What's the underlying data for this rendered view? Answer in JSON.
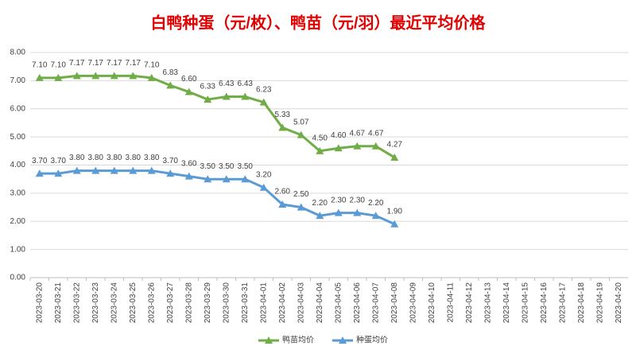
{
  "chart_data": {
    "type": "line",
    "title": "白鸭种蛋（元/枚）、鸭苗（元/羽）最近平均价格",
    "categories": [
      "2023-03-20",
      "2023-03-21",
      "2023-03-22",
      "2023-03-23",
      "2023-03-24",
      "2023-03-25",
      "2023-03-26",
      "2023-03-27",
      "2023-03-28",
      "2023-03-29",
      "2023-03-30",
      "2023-03-31",
      "2023-04-01",
      "2023-04-02",
      "2023-04-03",
      "2023-04-04",
      "2023-04-05",
      "2023-04-06",
      "2023-04-07",
      "2023-04-08",
      "2023-04-09",
      "2023-04-10",
      "2023-04-11",
      "2023-04-12",
      "2023-04-13",
      "2023-04-14",
      "2023-04-15",
      "2023-04-16",
      "2023-04-17",
      "2023-04-18",
      "2023-04-19",
      "2023-04-20"
    ],
    "series": [
      {
        "name": "鸭苗均价",
        "color": "#70ad47",
        "values": [
          7.1,
          7.1,
          7.17,
          7.17,
          7.17,
          7.17,
          7.1,
          6.83,
          6.6,
          6.33,
          6.43,
          6.43,
          6.23,
          5.33,
          5.07,
          4.5,
          4.6,
          4.67,
          4.67,
          4.27,
          null,
          null,
          null,
          null,
          null,
          null,
          null,
          null,
          null,
          null,
          null,
          null
        ],
        "value_labels": [
          "7.10",
          "7.10",
          "7.17",
          "7.17",
          "7.17",
          "7.17",
          "7.10",
          "6.83",
          "6.60",
          "6.33",
          "6.43",
          "6.43",
          "6.23",
          "5.33",
          "5.07",
          "4.50",
          "4.60",
          "4.67",
          "4.67",
          "4.27",
          null,
          null,
          null,
          null,
          null,
          null,
          null,
          null,
          null,
          null,
          null,
          null
        ]
      },
      {
        "name": "种蛋均价",
        "color": "#5b9bd5",
        "values": [
          3.7,
          3.7,
          3.8,
          3.8,
          3.8,
          3.8,
          3.8,
          3.7,
          3.6,
          3.5,
          3.5,
          3.5,
          3.2,
          2.6,
          2.5,
          2.2,
          2.3,
          2.3,
          2.2,
          1.9,
          null,
          null,
          null,
          null,
          null,
          null,
          null,
          null,
          null,
          null,
          null,
          null
        ],
        "value_labels": [
          "3.70",
          "3.70",
          "3.80",
          "3.80",
          "3.80",
          "3.80",
          "3.80",
          "3.70",
          "3.60",
          "3.50",
          "3.50",
          "3.50",
          "3.20",
          "2.60",
          "2.50",
          "2.20",
          "2.30",
          "2.30",
          "2.20",
          "1.90",
          null,
          null,
          null,
          null,
          null,
          null,
          null,
          null,
          null,
          null,
          null,
          null
        ]
      }
    ],
    "ylim": [
      0,
      8
    ],
    "yticks": [
      {
        "value": 0,
        "label": "0.00"
      },
      {
        "value": 1,
        "label": "1.00"
      },
      {
        "value": 2,
        "label": "2.00"
      },
      {
        "value": 3,
        "label": "3.00"
      },
      {
        "value": 4,
        "label": "4.00"
      },
      {
        "value": 5,
        "label": "5.00"
      },
      {
        "value": 6,
        "label": "6.00"
      },
      {
        "value": 7,
        "label": "7.00"
      },
      {
        "value": 8,
        "label": "8.00"
      }
    ],
    "grid": true,
    "legend": "bottom"
  }
}
